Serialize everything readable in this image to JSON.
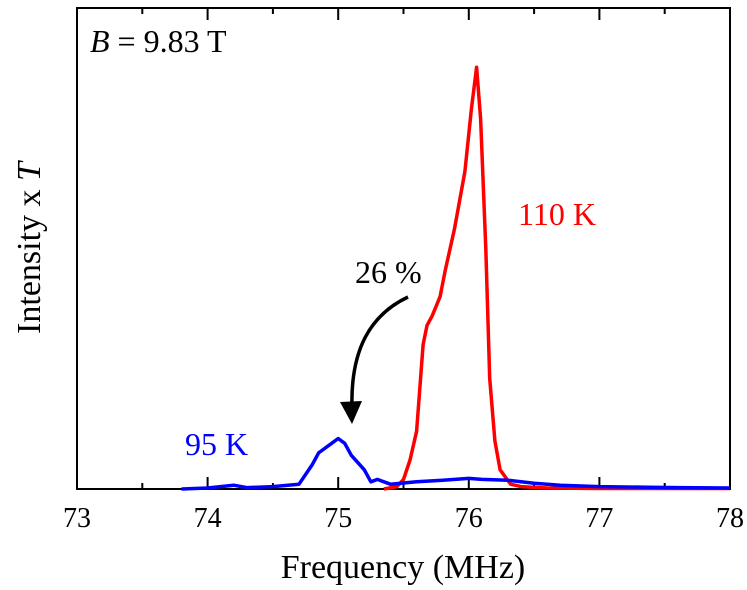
{
  "chart_data": {
    "type": "line",
    "xlabel": "Frequency (MHz)",
    "ylabel_parts": [
      "Intensity x ",
      "T"
    ],
    "annotations": [
      {
        "parts": [
          "B",
          " = 9.83 T"
        ],
        "color": "#000000"
      },
      {
        "parts": [
          "26 %"
        ],
        "color": "#000000"
      }
    ],
    "xlim": [
      73,
      78
    ],
    "xticks": [
      73,
      74,
      75,
      76,
      77,
      78
    ],
    "xminorticks": [
      73.5,
      74.5,
      75.5,
      76.5,
      77.5
    ],
    "ylim": [
      0,
      1
    ],
    "series": [
      {
        "name": "110 K",
        "color": "#ff0000",
        "x": [
          75.35,
          75.45,
          75.5,
          75.55,
          75.6,
          75.65,
          75.68,
          75.72,
          75.78,
          75.82,
          75.89,
          75.97,
          76.02,
          76.06,
          76.09,
          76.13,
          76.16,
          76.2,
          76.24,
          76.32,
          76.4,
          76.6,
          77.0,
          77.5,
          78.0
        ],
        "values": [
          0,
          0.005,
          0.02,
          0.06,
          0.12,
          0.3,
          0.34,
          0.36,
          0.4,
          0.455,
          0.54,
          0.66,
          0.79,
          0.877,
          0.77,
          0.5,
          0.23,
          0.1,
          0.04,
          0.01,
          0.005,
          0.002,
          0.001,
          0.001,
          0.001
        ]
      },
      {
        "name": "95 K",
        "color": "#0000ff",
        "x": [
          73.8,
          74.0,
          74.2,
          74.3,
          74.5,
          74.7,
          74.8,
          74.85,
          74.9,
          74.95,
          75.0,
          75.05,
          75.1,
          75.2,
          75.25,
          75.3,
          75.4,
          75.6,
          75.8,
          76.0,
          76.1,
          76.3,
          76.5,
          76.7,
          77.0,
          77.3,
          77.6,
          78.0
        ],
        "values": [
          0,
          0.002,
          0.008,
          0.003,
          0.005,
          0.01,
          0.05,
          0.075,
          0.085,
          0.095,
          0.105,
          0.095,
          0.07,
          0.04,
          0.015,
          0.02,
          0.01,
          0.015,
          0.018,
          0.022,
          0.02,
          0.018,
          0.012,
          0.008,
          0.005,
          0.004,
          0.003,
          0.002
        ]
      }
    ]
  }
}
